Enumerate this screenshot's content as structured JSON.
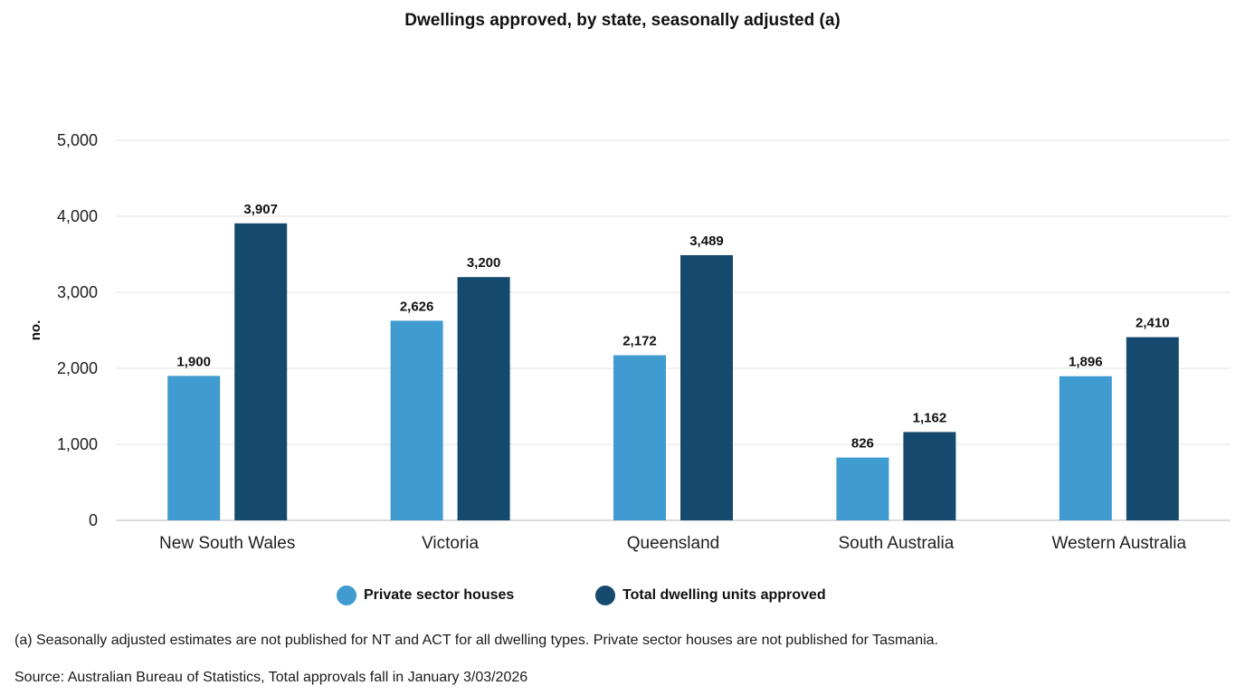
{
  "chart_data": {
    "type": "bar",
    "title": "Dwellings approved, by state, seasonally adjusted (a)",
    "xlabel": "",
    "ylabel": "no.",
    "ylim": [
      0,
      5000
    ],
    "yticks": [
      0,
      1000,
      2000,
      3000,
      4000,
      5000
    ],
    "ytick_labels": [
      "0",
      "1,000",
      "2,000",
      "3,000",
      "4,000",
      "5,000"
    ],
    "grid": true,
    "legend_position": "bottom",
    "categories": [
      "New South Wales",
      "Victoria",
      "Queensland",
      "South Australia",
      "Western Australia"
    ],
    "series": [
      {
        "name": "Private sector houses",
        "color": "#3f9bd0",
        "values": [
          1900,
          2626,
          2172,
          826,
          1896
        ],
        "labels": [
          "1,900",
          "2,626",
          "2,172",
          "826",
          "1,896"
        ]
      },
      {
        "name": "Total dwelling units approved",
        "color": "#154a6e",
        "values": [
          3907,
          3200,
          3489,
          1162,
          2410
        ],
        "labels": [
          "3,907",
          "3,200",
          "3,489",
          "1,162",
          "2,410"
        ]
      }
    ]
  },
  "notes": {
    "footnote": "(a) Seasonally adjusted estimates are not published for NT and ACT for all dwelling types. Private sector houses are not published for Tasmania.",
    "source": "Source: Australian Bureau of Statistics, Total approvals fall in January 3/03/2026"
  },
  "colors": {
    "gridline": "#e3e3e3",
    "axis": "#cfcfcf"
  }
}
